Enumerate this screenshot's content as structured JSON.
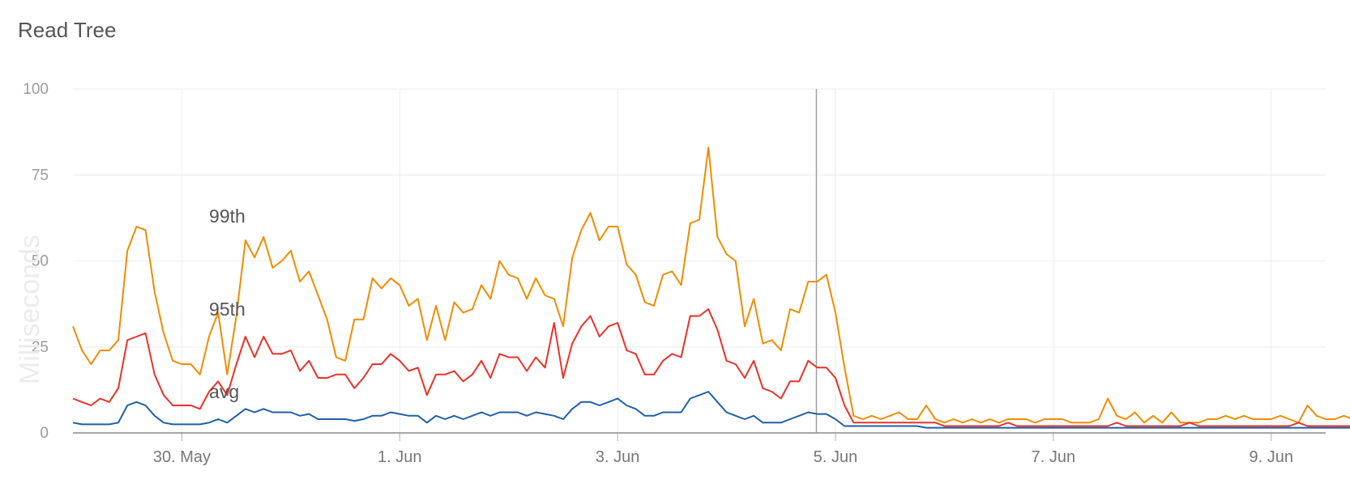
{
  "chart_data": {
    "type": "line",
    "title": "Read Tree",
    "ylabel": "Milliseconds",
    "xlabel": "",
    "ylim": [
      0,
      100
    ],
    "y_ticks": [
      "0",
      "25",
      "50",
      "75",
      "100"
    ],
    "x_range": [
      "2024-05-29 00:00",
      "2024-06-09 12:00"
    ],
    "x_ticks": [
      {
        "label": "30. May",
        "date": "2024-05-30 00:00"
      },
      {
        "label": "1. Jun",
        "date": "2024-06-01 00:00"
      },
      {
        "label": "3. Jun",
        "date": "2024-06-03 00:00"
      },
      {
        "label": "5. Jun",
        "date": "2024-06-05 00:00"
      },
      {
        "label": "7. Jun",
        "date": "2024-06-07 00:00"
      },
      {
        "label": "9. Jun",
        "date": "2024-06-09 00:00"
      }
    ],
    "grid": true,
    "marker_line": "2024-06-04 19:48",
    "x_start": "2024-05-29 00:00",
    "interval_hours": 2,
    "series": [
      {
        "name": "99th",
        "color": "#f08c00",
        "values": [
          31,
          24,
          20,
          24,
          24,
          27,
          53,
          60,
          59,
          41,
          29,
          21,
          20,
          20,
          17,
          28,
          35,
          17,
          34,
          56,
          51,
          57,
          48,
          50,
          53,
          44,
          47,
          40,
          33,
          22,
          21,
          33,
          33,
          45,
          42,
          45,
          43,
          37,
          39,
          27,
          37,
          27,
          38,
          35,
          36,
          43,
          39,
          50,
          46,
          45,
          39,
          45,
          40,
          39,
          31,
          51,
          59,
          64,
          56,
          60,
          60,
          49,
          46,
          38,
          37,
          46,
          47,
          43,
          61,
          62,
          83,
          57,
          52,
          50,
          31,
          39,
          26,
          27,
          24,
          36,
          35,
          44,
          44,
          46,
          35,
          19,
          5,
          4,
          5,
          4,
          5,
          6,
          4,
          4,
          8,
          4,
          3,
          4,
          3,
          4,
          3,
          4,
          3,
          4,
          4,
          4,
          3,
          4,
          4,
          4,
          3,
          3,
          3,
          4,
          10,
          5,
          4,
          6,
          3,
          5,
          3,
          6,
          3,
          3,
          3,
          4,
          4,
          5,
          4,
          5,
          4,
          4,
          4,
          5,
          4,
          3,
          8,
          5,
          4,
          4,
          5,
          4,
          4,
          7,
          4,
          4,
          7,
          9
        ],
        "label_at": "2024-05-30 06:00"
      },
      {
        "name": "95th",
        "color": "#e8322a",
        "values": [
          10,
          9,
          8,
          10,
          9,
          13,
          27,
          28,
          29,
          17,
          11,
          8,
          8,
          8,
          7,
          12,
          15,
          11,
          20,
          28,
          22,
          28,
          23,
          23,
          24,
          18,
          21,
          16,
          16,
          17,
          17,
          13,
          16,
          20,
          20,
          23,
          21,
          18,
          19,
          11,
          17,
          17,
          18,
          15,
          17,
          21,
          16,
          23,
          22,
          22,
          18,
          22,
          19,
          32,
          16,
          26,
          31,
          34,
          28,
          31,
          32,
          24,
          23,
          17,
          17,
          21,
          23,
          22,
          34,
          34,
          36,
          30,
          21,
          20,
          16,
          21,
          13,
          12,
          10,
          15,
          15,
          21,
          19,
          19,
          16,
          8,
          3,
          3,
          3,
          3,
          3,
          3,
          3,
          3,
          3,
          3,
          2,
          2,
          2,
          2,
          2,
          2,
          2,
          3,
          2,
          2,
          2,
          2,
          2,
          2,
          2,
          2,
          2,
          2,
          2,
          3,
          2,
          2,
          2,
          2,
          2,
          2,
          2,
          3,
          2,
          2,
          2,
          2,
          2,
          2,
          2,
          2,
          2,
          2,
          2,
          3,
          2,
          2,
          2,
          2,
          2,
          2,
          2,
          2,
          2,
          2,
          3,
          2
        ],
        "label_at": "2024-05-30 06:00"
      },
      {
        "name": "avg",
        "color": "#1f5fa8",
        "values": [
          3,
          2.5,
          2.5,
          2.5,
          2.5,
          3,
          8,
          9,
          8,
          5,
          3,
          2.5,
          2.5,
          2.5,
          2.5,
          3,
          4,
          3,
          5,
          7,
          6,
          7,
          6,
          6,
          6,
          5,
          5.5,
          4,
          4,
          4,
          4,
          3.5,
          4,
          5,
          5,
          6,
          5.5,
          5,
          5,
          3,
          5,
          4,
          5,
          4,
          5,
          6,
          5,
          6,
          6,
          6,
          5,
          6,
          5.5,
          5,
          4,
          7,
          9,
          9,
          8,
          9,
          10,
          8,
          7,
          5,
          5,
          6,
          6,
          6,
          10,
          11,
          12,
          9,
          6,
          5,
          4,
          5,
          3,
          3,
          3,
          4,
          5,
          6,
          5.5,
          5.5,
          4,
          2,
          2,
          2,
          2,
          2,
          2,
          2,
          2,
          2,
          1.5,
          1.5,
          1.5,
          1.5,
          1.5,
          1.5,
          1.5,
          1.5,
          1.5,
          1.5,
          1.5,
          1.5,
          1.5,
          1.5,
          1.5,
          1.5,
          1.5,
          1.5,
          1.5,
          1.5,
          1.5,
          1.5,
          1.5,
          1.5,
          1.5,
          1.5,
          1.5,
          1.5,
          1.5,
          1.5,
          1.5,
          1.5,
          1.5,
          1.5,
          1.5,
          1.5,
          1.5,
          1.5,
          1.5,
          1.5,
          1.5,
          1.5,
          1.5,
          1.5,
          1.5,
          1.5,
          1.5,
          1.5,
          1.5,
          1.5
        ],
        "label_at": "2024-05-30 06:00"
      }
    ]
  }
}
